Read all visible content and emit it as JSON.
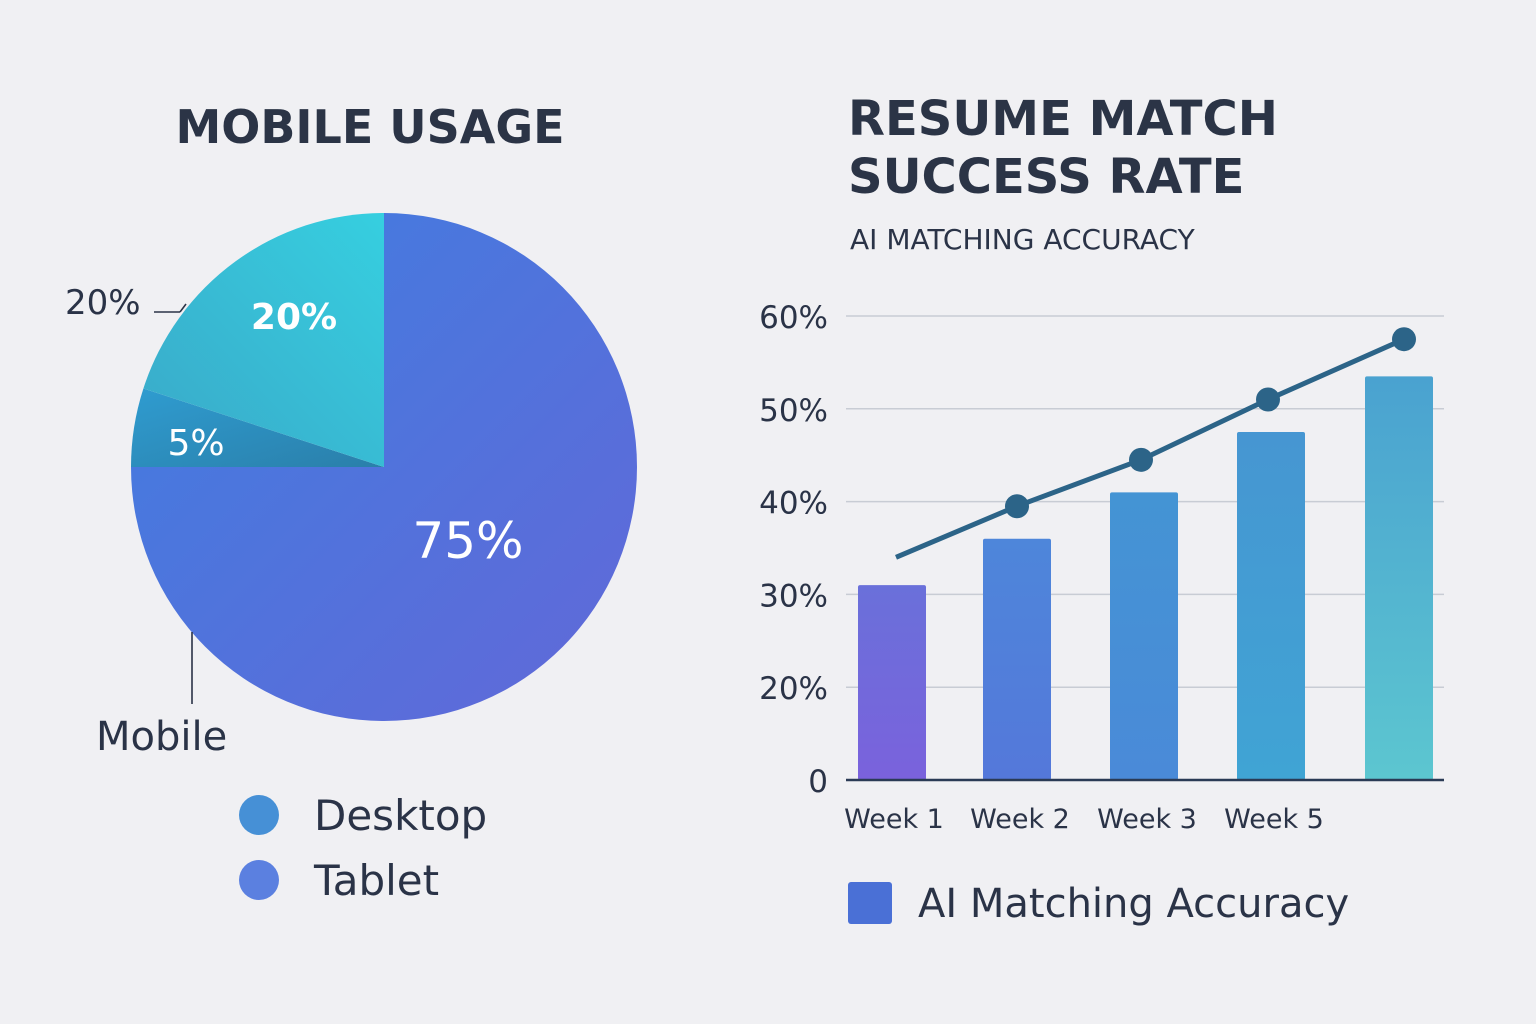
{
  "chart_data": [
    {
      "type": "pie",
      "title": "MOBILE USAGE",
      "slices": [
        {
          "value": 75,
          "label": "75%"
        },
        {
          "value": 5,
          "label": "5%"
        },
        {
          "value": 20,
          "label": "20%"
        }
      ],
      "callouts": {
        "top": "20%",
        "bottom": "Mobile"
      },
      "legend": [
        {
          "name": "Desktop",
          "color": "#4690d6"
        },
        {
          "name": "Tablet",
          "color": "#5b80e0"
        }
      ],
      "colors": {
        "big_start": "#3f7ee0",
        "big_end": "#6268d8",
        "small_start": "#2f9cd0",
        "small_end": "#2a7faa",
        "mid_start": "#36cfe0",
        "mid_end": "#3aa8c8"
      }
    },
    {
      "type": "bar",
      "title_lines": [
        "RESUME MATCH",
        "SUCCESS RATE"
      ],
      "subtitle": "AI MATCHING ACCURACY",
      "y_ticks": [
        "0",
        "20%",
        "30%",
        "40%",
        "50%",
        "60%"
      ],
      "categories": [
        "Week 1",
        "Week 2",
        "Week 3",
        "Week 5",
        ""
      ],
      "series": [
        {
          "name": "AI Matching Accuracy",
          "type": "bar",
          "values": [
            31,
            36,
            41,
            47.5,
            53.5
          ]
        },
        {
          "type": "line",
          "values": [
            34,
            39.5,
            44.5,
            51,
            57.5
          ]
        }
      ],
      "ylim": [
        10,
        60
      ],
      "grid": true,
      "legend": {
        "name": "AI Matching Accuracy",
        "color": "#4a70d6"
      },
      "colors": {
        "line": "#2c6488",
        "axis": "#2a3a55",
        "grid": "#c8ccd4"
      }
    }
  ]
}
